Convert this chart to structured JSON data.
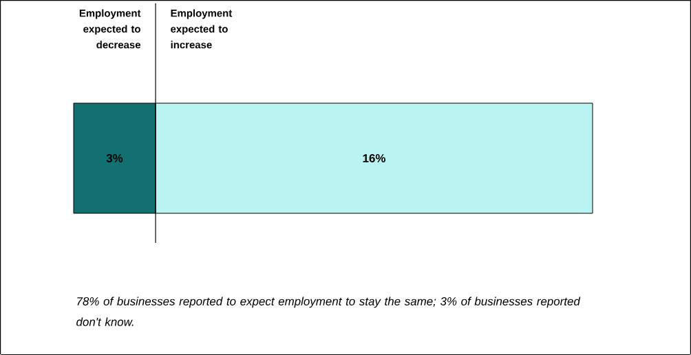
{
  "chart_data": {
    "type": "bar",
    "orientation": "horizontal",
    "stacked": true,
    "categories": [
      null
    ],
    "series": [
      {
        "color": "#127170",
        "values": [
          3
        ],
        "value_labels": [
          "3%"
        ]
      },
      {
        "color": "#b9f4f2",
        "values": [
          16
        ],
        "value_labels": [
          "16%"
        ]
      }
    ],
    "ref_lines": [
      {
        "axis": "x",
        "value": 3
      }
    ],
    "annotations": [
      "Employment expected to decrease",
      "Employment expected to increase",
      "*78% of businesses reported to expect employment to stay the same; 3% of businesses reported don't know.*"
    ]
  }
}
